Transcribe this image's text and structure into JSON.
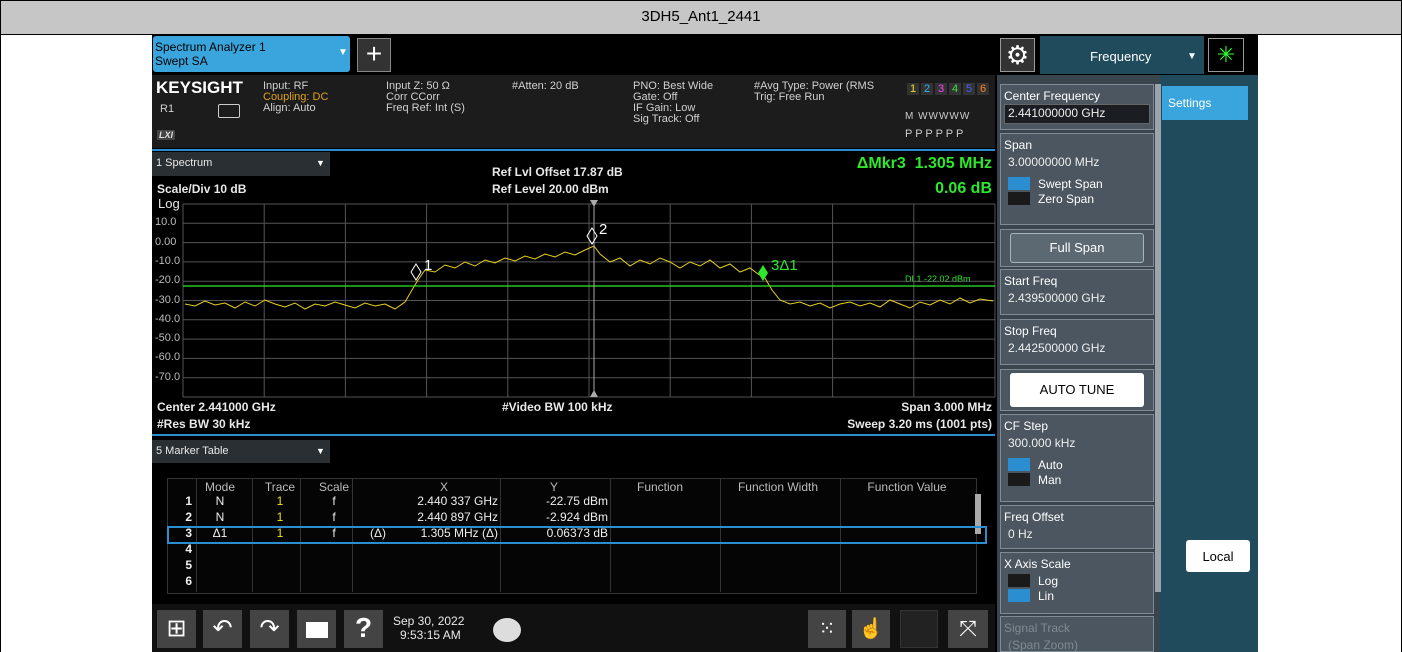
{
  "title": "3DH5_Ant1_2441",
  "tabs": {
    "instrument": "Spectrum Analyzer 1",
    "mode": "Swept SA",
    "menu": "Frequency",
    "settings": "Settings"
  },
  "header": {
    "brand": "KEYSIGHT",
    "ref": "R1",
    "lxi": "LXI",
    "col1": [
      "Input: RF",
      "Coupling: DC",
      "Align: Auto"
    ],
    "col2": [
      "Input Z: 50 Ω",
      "Corr CCorr",
      "Freq Ref: Int (S)"
    ],
    "col3": [
      "#Atten: 20 dB"
    ],
    "col4": [
      "PNO: Best Wide",
      "Gate: Off",
      "IF Gain: Low",
      "Sig Track: Off"
    ],
    "col5": [
      "#Avg Type: Power (RMS",
      "Trig: Free Run"
    ],
    "traces": [
      "1",
      "2",
      "3",
      "4",
      "5",
      "6"
    ],
    "trace_colors": [
      "#f0e020",
      "#30b0ff",
      "#ff40ff",
      "#40e040",
      "#4060ff",
      "#ff8020"
    ],
    "trace_modes": "M WWWWW",
    "detectors": "P P P P P P"
  },
  "spectrum": {
    "window": "1 Spectrum",
    "scale": "Scale/Div 10 dB",
    "log": "Log",
    "ref_offset": "Ref Lvl Offset 17.87 dB",
    "ref_level": "Ref Level 20.00 dBm",
    "delta_marker": "ΔMkr3  1.305 MHz",
    "delta_value": "0.06 dB",
    "y_labels": [
      "10.0",
      "0.00",
      "-10.0",
      "-20.0",
      "-30.0",
      "-40.0",
      "-50.0",
      "-60.0",
      "-70.0"
    ],
    "display_line": "DL1 -22.02 dBm",
    "markers": [
      "1",
      "2",
      "3Δ1"
    ],
    "center": "Center 2.441000 GHz",
    "res_bw": "#Res BW 30 kHz",
    "video_bw": "#Video BW 100 kHz",
    "span": "Span 3.000 MHz",
    "sweep": "Sweep 3.20 ms (1001 pts)"
  },
  "marker_table": {
    "window": "5 Marker Table",
    "columns": {
      "mode": "Mode",
      "trace": "Trace",
      "scale": "Scale",
      "x": "X",
      "y": "Y",
      "function": "Function",
      "width": "Function Width",
      "fvalue": "Function Value"
    },
    "rows": [
      {
        "n": "1",
        "mode": "N",
        "trace": "1",
        "scale": "f",
        "x": "2.440 337 GHz",
        "y": "-22.75 dBm"
      },
      {
        "n": "2",
        "mode": "N",
        "trace": "1",
        "scale": "f",
        "x": "2.440 897 GHz",
        "y": "-2.924 dBm"
      },
      {
        "n": "3",
        "mode": "Δ1",
        "trace": "1",
        "scale": "f",
        "ref": "(Δ)",
        "x": "1.305 MHz (Δ)",
        "y": "0.06373 dB"
      },
      {
        "n": "4"
      },
      {
        "n": "5"
      },
      {
        "n": "6"
      }
    ],
    "selected_row": 2
  },
  "softkeys": [
    {
      "label": "Center Frequency",
      "value": "2.441000000 GHz",
      "active": true
    },
    {
      "label": "Span",
      "value": "3.00000000 MHz",
      "options": [
        "Swept Span",
        "Zero Span"
      ],
      "selected": 0
    },
    {
      "button": "Full Span"
    },
    {
      "label": "Start Freq",
      "value": "2.439500000 GHz"
    },
    {
      "label": "Stop Freq",
      "value": "2.442500000 GHz"
    },
    {
      "button": "AUTO TUNE",
      "white": true
    },
    {
      "label": "CF Step",
      "value": "300.000 kHz",
      "options": [
        "Auto",
        "Man"
      ],
      "selected": 0
    },
    {
      "label": "Freq Offset",
      "value": "0 Hz"
    },
    {
      "label": "X Axis Scale",
      "options": [
        "Log",
        "Lin"
      ],
      "selected": 1
    },
    {
      "label": "Signal Track",
      "value": "(Span Zoom)",
      "disabled": true
    }
  ],
  "local": "Local",
  "taskbar": {
    "help": "?",
    "date": "Sep 30, 2022",
    "time": "9:53:15 AM"
  }
}
